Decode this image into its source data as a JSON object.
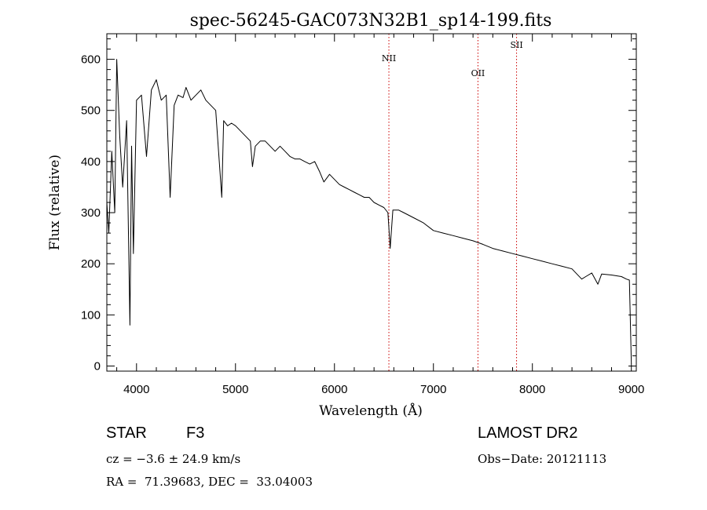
{
  "chart_data": {
    "type": "line",
    "title": "spec-56245-GAC073N32B1_sp14-199.fits",
    "xlabel": "Wavelength (Å)",
    "ylabel": "Flux (relative)",
    "xlim": [
      3700,
      9050
    ],
    "ylim": [
      -10,
      650
    ],
    "xticks": [
      4000,
      5000,
      6000,
      7000,
      8000,
      9000
    ],
    "yticks": [
      0,
      100,
      200,
      300,
      400,
      500,
      600
    ],
    "grid": false,
    "colors": {
      "spectrum": "#000000",
      "line_marker": "#cc0000",
      "axes": "#000000"
    },
    "series": [
      {
        "x": [
          3700,
          3720,
          3750,
          3780,
          3800,
          3830,
          3860,
          3900,
          3933,
          3950,
          3968,
          4000,
          4050,
          4101,
          4150,
          4200,
          4250,
          4300,
          4340,
          4380,
          4420,
          4470,
          4500,
          4550,
          4600,
          4650,
          4700,
          4750,
          4800,
          4861,
          4880,
          4920,
          4960,
          5000,
          5050,
          5100,
          5150,
          5172,
          5200,
          5250,
          5300,
          5350,
          5400,
          5450,
          5500,
          5550,
          5600,
          5650,
          5700,
          5750,
          5800,
          5850,
          5893,
          5950,
          6000,
          6050,
          6100,
          6150,
          6200,
          6250,
          6300,
          6350,
          6400,
          6450,
          6500,
          6540,
          6563,
          6590,
          6650,
          6700,
          6800,
          6900,
          7000,
          7100,
          7200,
          7300,
          7400,
          7500,
          7600,
          7700,
          7800,
          7900,
          8000,
          8100,
          8200,
          8300,
          8400,
          8498,
          8540,
          8600,
          8662,
          8700,
          8800,
          8900,
          8950,
          8980,
          9000
        ],
        "y": [
          320,
          260,
          420,
          300,
          600,
          450,
          350,
          480,
          80,
          430,
          220,
          520,
          530,
          410,
          540,
          560,
          520,
          530,
          330,
          510,
          530,
          525,
          545,
          520,
          530,
          540,
          520,
          510,
          500,
          330,
          480,
          470,
          475,
          470,
          460,
          450,
          440,
          390,
          430,
          440,
          440,
          430,
          420,
          430,
          420,
          410,
          405,
          405,
          400,
          395,
          400,
          380,
          360,
          375,
          365,
          355,
          350,
          345,
          340,
          335,
          330,
          330,
          320,
          315,
          310,
          300,
          230,
          305,
          305,
          300,
          290,
          280,
          265,
          260,
          255,
          250,
          245,
          238,
          230,
          225,
          220,
          215,
          210,
          205,
          200,
          195,
          190,
          170,
          175,
          182,
          160,
          180,
          178,
          175,
          170,
          168,
          5
        ]
      }
    ],
    "line_markers": [
      {
        "label": "NII",
        "x": 6550
      },
      {
        "label": "OII",
        "x": 7450
      },
      {
        "label": "SII",
        "x": 7840
      }
    ]
  },
  "info": {
    "object": "STAR",
    "subclass": "F3",
    "survey": "LAMOST DR2",
    "cz": "cz = −3.6 ± 24.9 km/s",
    "obs_date": "Obs−Date: 20121113",
    "radec": "RA =  71.39683, DEC =  33.04003"
  }
}
